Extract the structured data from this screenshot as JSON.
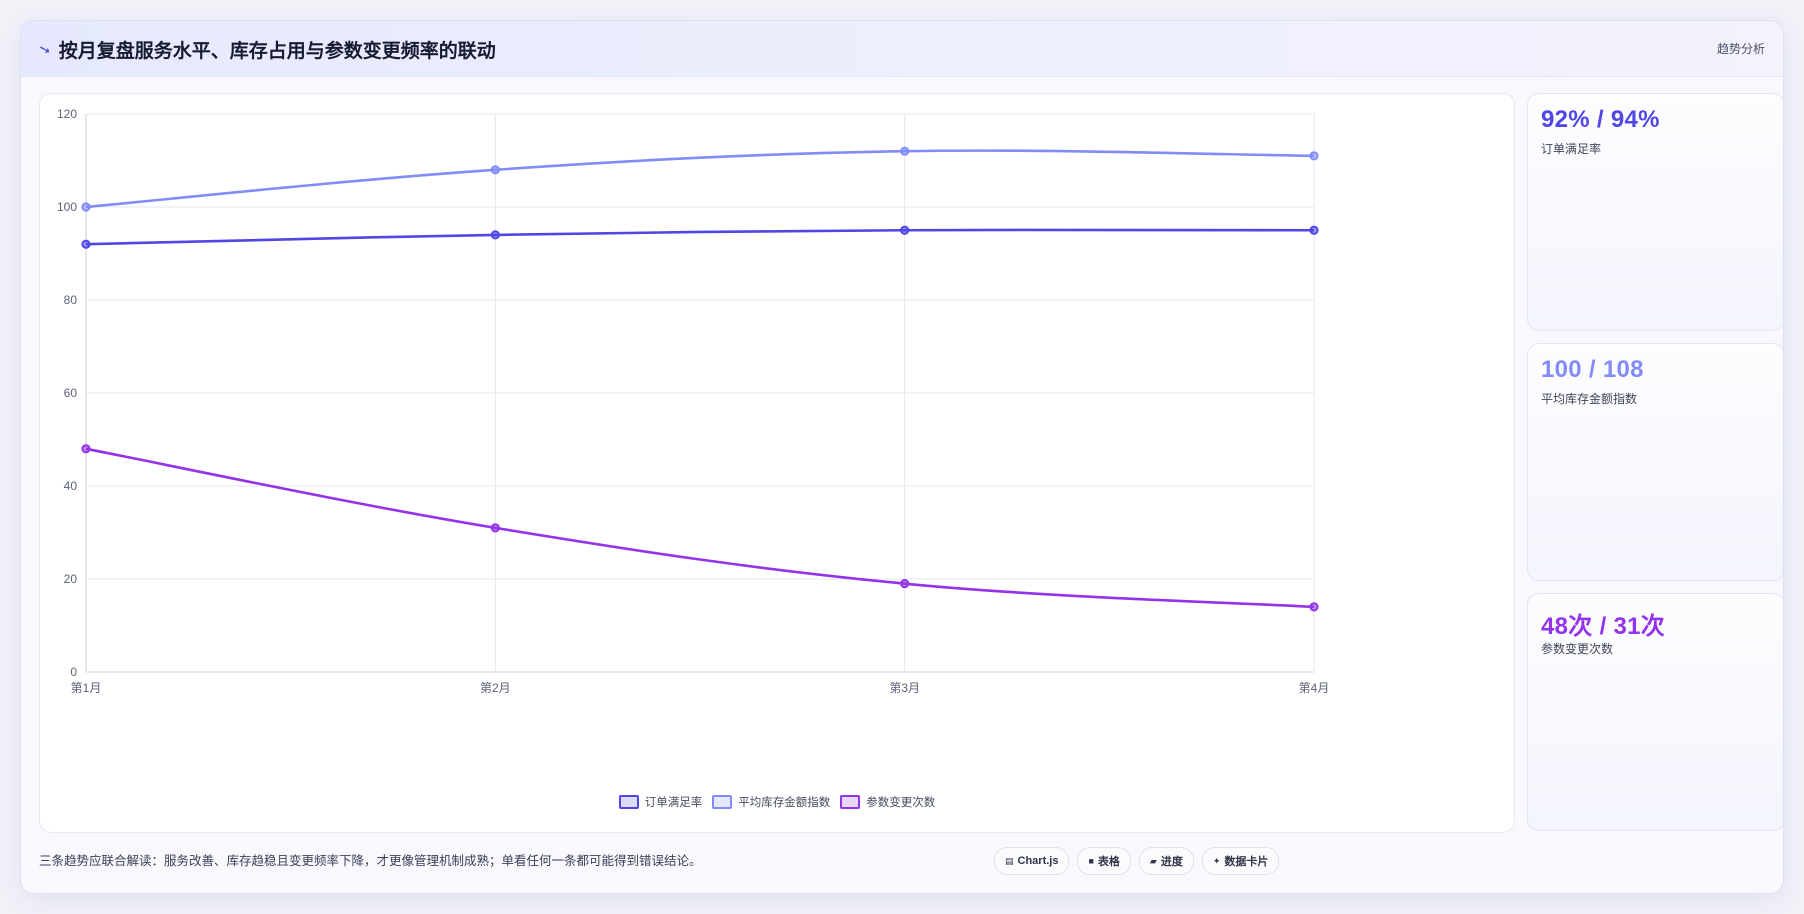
{
  "header": {
    "title": "按月复盘服务水平、库存占用与参数变更频率的联动",
    "tag": "趋势分析",
    "icon": "trend-arrow-icon"
  },
  "chart_data": {
    "type": "line",
    "categories": [
      "第1月",
      "第2月",
      "第3月",
      "第4月"
    ],
    "ylim": [
      0,
      120
    ],
    "yticks": [
      0,
      20,
      40,
      60,
      80,
      100,
      120
    ],
    "grid": true,
    "legend": "bottom",
    "series": [
      {
        "name": "订单满足率",
        "values": [
          92,
          94,
          95,
          95
        ],
        "color": "#4f46e5"
      },
      {
        "name": "平均库存金额指数",
        "values": [
          100,
          108,
          112,
          111
        ],
        "color": "#818cf8"
      },
      {
        "name": "参数变更次数",
        "values": [
          48,
          31,
          19,
          14
        ],
        "color": "#9333ea"
      }
    ]
  },
  "stats": [
    {
      "value": "92% / 94%",
      "label": "订单满足率",
      "color": "#4f46e5"
    },
    {
      "value": "100 / 108",
      "label": "平均库存金额指数",
      "color": "#818cf8"
    },
    {
      "value": "48次 / 31次",
      "label": "参数变更次数",
      "color": "#9333ea"
    }
  ],
  "footnote": "三条趋势应联合解读：服务改善、库存趋稳且变更频率下降，才更像管理机制成熟；单看任何一条都可能得到错误结论。",
  "chips": [
    {
      "icon": "▤",
      "label": "Chart.js"
    },
    {
      "icon": "■",
      "label": "表格"
    },
    {
      "icon": "▰",
      "label": "进度"
    },
    {
      "icon": "✦",
      "label": "数据卡片"
    }
  ]
}
